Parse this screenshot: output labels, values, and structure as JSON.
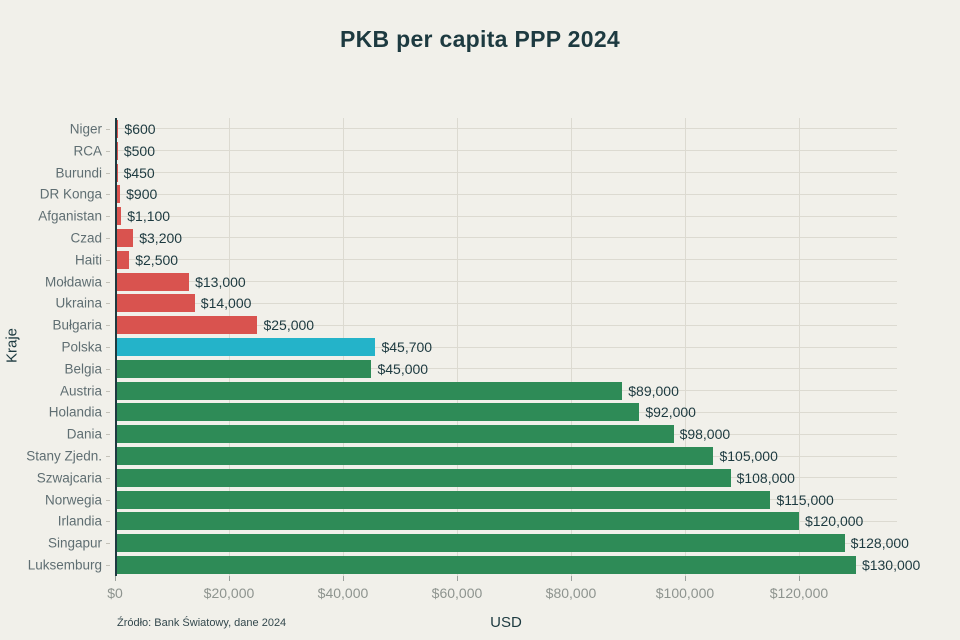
{
  "title": "PKB per capita PPP 2024",
  "source_note": "Źródło: Bank Światowy, dane 2024",
  "colors": {
    "background": "#f1f0ea",
    "bar_poor": "#d9534f",
    "bar_highlight": "#24b3c9",
    "bar_rich": "#2e8b57",
    "grid": "#dcdad1",
    "axis_line": "#1d3a40",
    "text_dark": "#1d3a40",
    "category_label": "#5f6e72",
    "tick_label": "#8e948f"
  },
  "chart_data": {
    "type": "bar",
    "orientation": "horizontal",
    "title": "PKB per capita PPP 2024",
    "xlabel": "USD",
    "ylabel": "Kraje",
    "xlim": [
      0,
      137200
    ],
    "grid": true,
    "legend": false,
    "categories": [
      "Niger",
      "RCA",
      "Burundi",
      "DR Konga",
      "Afganistan",
      "Czad",
      "Haiti",
      "Mołdawia",
      "Ukraina",
      "Bułgaria",
      "Polska",
      "Belgia",
      "Austria",
      "Holandia",
      "Dania",
      "Stany Zjedn.",
      "Szwajcaria",
      "Norwegia",
      "Irlandia",
      "Singapur",
      "Luksemburg"
    ],
    "values": [
      600,
      500,
      450,
      900,
      1100,
      3200,
      2500,
      13000,
      14000,
      25000,
      45700,
      45000,
      89000,
      92000,
      98000,
      105000,
      108000,
      115000,
      120000,
      128000,
      130000
    ],
    "value_labels": [
      "$600",
      "$500",
      "$450",
      "$900",
      "$1,100",
      "$3,200",
      "$2,500",
      "$13,000",
      "$14,000",
      "$25,000",
      "$45,700",
      "$45,000",
      "$89,000",
      "$92,000",
      "$98,000",
      "$105,000",
      "$108,000",
      "$115,000",
      "$120,000",
      "$128,000",
      "$130,000"
    ],
    "bar_colors": [
      "#d9534f",
      "#d9534f",
      "#d9534f",
      "#d9534f",
      "#d9534f",
      "#d9534f",
      "#d9534f",
      "#d9534f",
      "#d9534f",
      "#d9534f",
      "#24b3c9",
      "#2e8b57",
      "#2e8b57",
      "#2e8b57",
      "#2e8b57",
      "#2e8b57",
      "#2e8b57",
      "#2e8b57",
      "#2e8b57",
      "#2e8b57",
      "#2e8b57"
    ],
    "x_ticks": {
      "values": [
        0,
        20000,
        40000,
        60000,
        80000,
        100000,
        120000
      ],
      "labels": [
        "$0",
        "$20,000",
        "$40,000",
        "$60,000",
        "$80,000",
        "$100,000",
        "$120,000"
      ]
    }
  }
}
